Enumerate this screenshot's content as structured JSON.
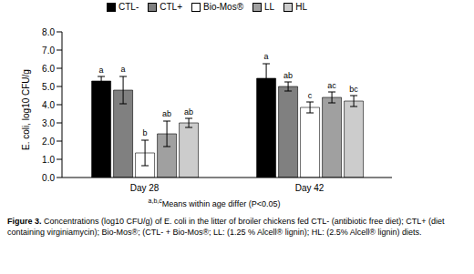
{
  "chart_data": {
    "type": "bar",
    "categories": [
      "Day 28",
      "Day 42"
    ],
    "series": [
      {
        "name": "CTL-",
        "color": "#000000",
        "values": [
          5.3,
          5.45
        ],
        "errors": [
          0.25,
          0.8
        ],
        "letters": [
          "a",
          "a"
        ]
      },
      {
        "name": "CTL+",
        "color": "#808080",
        "values": [
          4.8,
          5.0
        ],
        "errors": [
          0.75,
          0.25
        ],
        "letters": [
          "a",
          "ab"
        ]
      },
      {
        "name": "Bio-Mos®",
        "color": "#ffffff",
        "values": [
          1.35,
          3.85
        ],
        "errors": [
          0.7,
          0.3
        ],
        "letters": [
          "b",
          "c"
        ]
      },
      {
        "name": "LL",
        "color": "#a0a0a0",
        "values": [
          2.4,
          4.4
        ],
        "errors": [
          0.7,
          0.3
        ],
        "letters": [
          "ab",
          "ac"
        ]
      },
      {
        "name": "HL",
        "color": "#cccccc",
        "values": [
          3.0,
          4.2
        ],
        "errors": [
          0.25,
          0.3
        ],
        "letters": [
          "ab",
          "bc"
        ]
      }
    ],
    "y_label": "E. coli, log10 CFU/g",
    "ylim": [
      0,
      8
    ],
    "yticks": [
      {
        "value": 0,
        "label": "0.0"
      },
      {
        "value": 1,
        "label": "1.0"
      },
      {
        "value": 2,
        "label": "2.0"
      },
      {
        "value": 3,
        "label": "3.0"
      },
      {
        "value": 4,
        "label": "4.0"
      },
      {
        "value": 5,
        "label": "5.0"
      },
      {
        "value": 6,
        "label": "6.0"
      },
      {
        "value": 7,
        "label": "7.0"
      },
      {
        "value": 8,
        "label": "8.0"
      }
    ],
    "legend": "top",
    "footnote_marks": "a,b,c",
    "footnote": "Means within age differ (P<0.05)",
    "caption_label": "Figure 3.",
    "caption": "Concentrations (log10 CFU/g) of E. coli in the litter of broiler chickens fed CTL- (antibiotic free diet); CTL+ (diet containing virginiamycin); Bio-Mos®; (CTL- + Bio-Mos®; LL: (1.25 % Alcell® lignin); HL: (2.5% Alcell® lignin) diets."
  }
}
